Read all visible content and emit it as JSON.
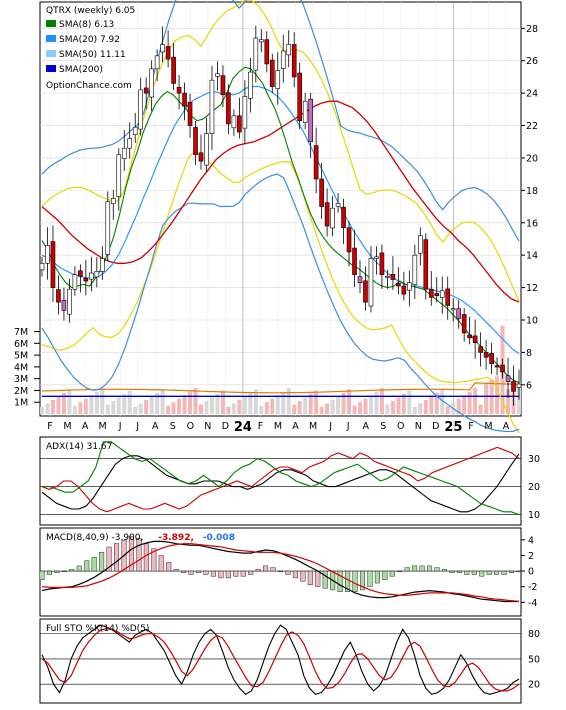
{
  "chart_data": [
    {
      "type": "candlestick",
      "panel": "price",
      "title": "QTRX (weekly) 6.05",
      "watermark": "OptionChance.com",
      "legend": [
        {
          "label": "SMA(8) 6.13",
          "color": "#008000"
        },
        {
          "label": "SMA(20) 7.92",
          "color": "#1e90ff"
        },
        {
          "label": "SMA(50) 11.11",
          "color": "#87cefa"
        },
        {
          "label": "SMA(200)",
          "color": "#0000cd"
        }
      ],
      "y_ticks": [
        6,
        8,
        10,
        12,
        14,
        16,
        18,
        20,
        22,
        24,
        26,
        28
      ],
      "ylim": [
        4.2,
        29.5
      ],
      "volume_ticks": [
        "1M",
        "2M",
        "3M",
        "4M",
        "5M",
        "6M",
        "7M"
      ],
      "volume_ylim": [
        0,
        7.3
      ],
      "x_ticks": [
        "F",
        "M",
        "A",
        "M",
        "J",
        "J",
        "A",
        "S",
        "O",
        "N",
        "D",
        "24",
        "F",
        "M",
        "A",
        "M",
        "J",
        "J",
        "A",
        "S",
        "O",
        "N",
        "D",
        "25",
        "F",
        "M",
        "A"
      ],
      "close": [
        13.5,
        14.6,
        12.0,
        11.1,
        10.6,
        11.9,
        12.8,
        12.7,
        12.4,
        12.9,
        13.0,
        13.8,
        17.3,
        17.5,
        20.2,
        20.6,
        21.2,
        21.9,
        24.2,
        24.0,
        25.5,
        26.3,
        27.0,
        26.1,
        24.6,
        24.0,
        23.2,
        22.0,
        20.2,
        19.8,
        21.5,
        24.8,
        25.2,
        23.9,
        22.1,
        22.6,
        21.6,
        23.8,
        25.3,
        27.4,
        27.3,
        25.8,
        24.4,
        25.4,
        26.6,
        27.0,
        25.0,
        22.3,
        23.5,
        21.0,
        18.7,
        17.0,
        15.8,
        16.9,
        17.2,
        15.7,
        14.2,
        12.8,
        12.3,
        11.1,
        13.8,
        13.9,
        12.8,
        12.7,
        12.5,
        12.1,
        11.6,
        12.3,
        14.0,
        15.2,
        11.9,
        11.4,
        11.5,
        11.8,
        10.9,
        10.7,
        10.1,
        9.2,
        8.9,
        8.6,
        8.0,
        7.7,
        7.3,
        7.1,
        6.8,
        6.2,
        5.6,
        6.05
      ],
      "sma8": [
        14.9,
        14.3,
        13.4,
        12.8,
        12.3,
        12.0,
        12.1,
        12.2,
        12.1,
        12.6,
        13.2,
        14.1,
        15.1,
        16.5,
        18.1,
        19.4,
        20.4,
        21.6,
        22.5,
        23.3,
        23.8,
        24.1,
        23.9,
        23.5,
        23.1,
        22.6,
        22.3,
        22.4,
        22.7,
        23.0,
        23.3,
        24.0,
        24.9,
        25.3,
        25.6,
        25.5,
        25.1,
        24.6,
        23.8,
        23.1,
        22.1,
        20.9,
        19.7,
        18.7,
        17.6,
        16.6,
        15.8,
        15.2,
        14.7,
        14.3,
        14.0,
        13.7,
        13.4,
        13.2,
        12.9,
        12.6,
        12.3,
        12.1,
        12.0,
        12.1,
        12.4,
        12.2,
        12.1,
        12.0,
        11.9,
        11.6,
        11.3,
        11.0,
        10.7,
        10.3,
        9.9,
        9.4,
        9.0,
        8.6,
        8.2,
        7.8,
        7.4,
        7.0,
        6.6,
        6.3,
        6.13
      ],
      "sma20": [
        14.0,
        13.8,
        13.5,
        13.2,
        13.0,
        12.8,
        12.7,
        12.6,
        12.6,
        12.7,
        13.0,
        13.4,
        14.0,
        14.8,
        15.7,
        16.6,
        17.6,
        18.5,
        19.5,
        20.4,
        21.3,
        22.1,
        22.7,
        23.3,
        23.6,
        23.8,
        24.0,
        24.1,
        24.0,
        24.0,
        23.9,
        24.0,
        24.3,
        24.4,
        24.4,
        24.3,
        24.1,
        23.8,
        23.4,
        22.9,
        22.3,
        21.7,
        20.9,
        20.1,
        19.3,
        18.5,
        17.7,
        16.9,
        16.2,
        15.5,
        14.9,
        14.3,
        13.8,
        13.4,
        13.0,
        12.7,
        12.4,
        12.2,
        12.1,
        12.1,
        12.0,
        11.9,
        11.8,
        11.7,
        11.6,
        11.4,
        11.2,
        10.9,
        10.6,
        10.2,
        9.8,
        9.4,
        9.0,
        8.6,
        8.2,
        7.92
      ],
      "sma50": [
        17.0,
        16.6,
        16.2,
        15.7,
        15.2,
        14.8,
        14.4,
        14.1,
        13.8,
        13.6,
        13.5,
        13.5,
        13.6,
        13.8,
        14.2,
        14.7,
        15.3,
        15.9,
        16.6,
        17.3,
        18.0,
        18.7,
        19.3,
        19.9,
        20.3,
        20.6,
        20.8,
        20.9,
        21.0,
        21.2,
        21.4,
        21.7,
        22.0,
        22.3,
        22.6,
        22.9,
        23.2,
        23.4,
        23.5,
        23.5,
        23.3,
        23.1,
        22.7,
        22.2,
        21.6,
        20.9,
        20.2,
        19.5,
        18.8,
        18.1,
        17.5,
        16.9,
        16.3,
        15.8,
        15.4,
        14.9,
        14.5,
        14.0,
        13.4,
        12.8,
        12.2,
        11.7,
        11.3,
        11.11
      ]
    },
    {
      "type": "line",
      "panel": "adx",
      "title": "ADX(14) 31.67",
      "y_ticks": [
        10,
        20,
        30
      ],
      "ylim": [
        7,
        37
      ],
      "series": [
        {
          "color": "#000000",
          "values": [
            18,
            16,
            14,
            13,
            12,
            12,
            13,
            16,
            20,
            24,
            28,
            30,
            31,
            31,
            30,
            28,
            26,
            24,
            23,
            22,
            21,
            21,
            22,
            22,
            22,
            21,
            20,
            20,
            19,
            20,
            21,
            23,
            25,
            26,
            26,
            25,
            24,
            22,
            21,
            20,
            20,
            21,
            22,
            23,
            24,
            25,
            26,
            26,
            25,
            23,
            21,
            19,
            17,
            15,
            14,
            13,
            12,
            11,
            11,
            12,
            14,
            17,
            20,
            24,
            28,
            31.67
          ]
        },
        {
          "color": "#008000",
          "values": [
            20,
            20,
            19,
            18,
            18,
            20,
            22,
            27,
            36,
            36,
            34,
            32,
            30,
            29,
            30,
            28,
            26,
            24,
            22,
            21,
            22,
            24,
            22,
            20,
            22,
            25,
            27,
            28,
            30,
            29,
            27,
            25,
            24,
            22,
            21,
            20,
            21,
            23,
            25,
            26,
            27,
            28,
            26,
            24,
            22,
            23,
            25,
            27,
            26,
            25,
            24,
            23,
            22,
            21,
            20,
            18,
            16,
            14,
            13,
            12,
            11,
            11,
            10
          ]
        },
        {
          "color": "#cc0000",
          "values": [
            20,
            19,
            20,
            22,
            22,
            20,
            17,
            14,
            12,
            11,
            12,
            13,
            14,
            13,
            12,
            12,
            13,
            14,
            13,
            12,
            13,
            15,
            17,
            18,
            19,
            20,
            21,
            22,
            21,
            20,
            22,
            24,
            26,
            27,
            27,
            26,
            25,
            27,
            28,
            29,
            31,
            32,
            31,
            30,
            32,
            31,
            29,
            28,
            27,
            26,
            25,
            24,
            22,
            23,
            25,
            26,
            27,
            28,
            29,
            30,
            31,
            32,
            33,
            34,
            33,
            32,
            30
          ]
        }
      ]
    },
    {
      "type": "bar+line",
      "panel": "macd",
      "title": "MACD(8,40,9) -3.900, -3.892, -0.008",
      "title_parts": {
        "main": "MACD(8,40,9) -3.900,",
        "signal": "-3.892,",
        "hist": "-0.008"
      },
      "y_ticks": [
        -4,
        -2,
        0,
        2,
        4
      ],
      "ylim": [
        -5.5,
        5
      ],
      "macd": [
        -2.5,
        -2.3,
        -2.2,
        -2.1,
        -2.0,
        -1.7,
        -1.3,
        -0.8,
        -0.2,
        0.5,
        1.2,
        2.0,
        2.8,
        3.3,
        3.6,
        3.8,
        3.8,
        3.7,
        3.5,
        3.4,
        3.3,
        3.3,
        3.1,
        2.9,
        2.7,
        2.5,
        2.4,
        2.3,
        2.3,
        2.5,
        2.7,
        2.6,
        2.3,
        1.9,
        1.5,
        1.0,
        0.5,
        0.0,
        -0.6,
        -1.2,
        -1.8,
        -2.3,
        -2.8,
        -3.1,
        -3.3,
        -3.4,
        -3.4,
        -3.3,
        -3.1,
        -2.9,
        -2.7,
        -2.6,
        -2.5,
        -2.6,
        -2.7,
        -2.9,
        -3.0,
        -3.2,
        -3.4,
        -3.6,
        -3.7,
        -3.8,
        -3.9,
        -3.9,
        -3.9
      ],
      "signal": [
        -2.0,
        -2.1,
        -2.1,
        -2.1,
        -2.1,
        -2.0,
        -1.9,
        -1.6,
        -1.3,
        -0.9,
        -0.4,
        0.2,
        0.8,
        1.4,
        2.0,
        2.5,
        2.9,
        3.2,
        3.4,
        3.5,
        3.5,
        3.4,
        3.3,
        3.2,
        3.1,
        2.9,
        2.7,
        2.6,
        2.5,
        2.4,
        2.4,
        2.4,
        2.3,
        2.1,
        1.9,
        1.6,
        1.3,
        0.9,
        0.4,
        -0.1,
        -0.6,
        -1.1,
        -1.6,
        -2.0,
        -2.4,
        -2.7,
        -2.9,
        -3.0,
        -3.1,
        -3.1,
        -3.0,
        -2.9,
        -2.8,
        -2.8,
        -2.8,
        -2.8,
        -2.9,
        -3.0,
        -3.2,
        -3.3,
        -3.5,
        -3.6,
        -3.7,
        -3.8,
        -3.89
      ]
    },
    {
      "type": "line",
      "panel": "stochastic",
      "title": "Full STO %K(14) %D(5)",
      "y_ticks": [
        20,
        50,
        80
      ],
      "ylim": [
        0,
        95
      ],
      "k": [
        55,
        40,
        20,
        10,
        25,
        50,
        65,
        75,
        80,
        85,
        90,
        88,
        85,
        80,
        75,
        70,
        78,
        82,
        85,
        80,
        70,
        60,
        45,
        30,
        20,
        35,
        55,
        70,
        80,
        85,
        78,
        60,
        40,
        25,
        15,
        8,
        12,
        25,
        45,
        65,
        80,
        90,
        85,
        70,
        55,
        30,
        15,
        8,
        10,
        18,
        30,
        45,
        60,
        70,
        55,
        35,
        20,
        12,
        18,
        30,
        50,
        70,
        85,
        75,
        55,
        30,
        15,
        8,
        10,
        15,
        25,
        40,
        55,
        45,
        30,
        18,
        10,
        8,
        10,
        12,
        15,
        22,
        26
      ],
      "d": [
        50,
        45,
        35,
        25,
        22,
        30,
        45,
        60,
        70,
        78,
        84,
        86,
        85,
        82,
        78,
        74,
        75,
        78,
        80,
        80,
        76,
        70,
        60,
        48,
        35,
        30,
        38,
        50,
        62,
        72,
        78,
        75,
        65,
        52,
        40,
        28,
        18,
        17,
        22,
        35,
        50,
        65,
        78,
        82,
        78,
        68,
        52,
        35,
        22,
        15,
        16,
        22,
        32,
        45,
        55,
        56,
        50,
        40,
        30,
        25,
        28,
        38,
        52,
        65,
        70,
        65,
        52,
        38,
        25,
        18,
        17,
        22,
        32,
        42,
        45,
        40,
        30,
        20,
        14,
        12,
        12,
        15,
        20
      ]
    }
  ]
}
